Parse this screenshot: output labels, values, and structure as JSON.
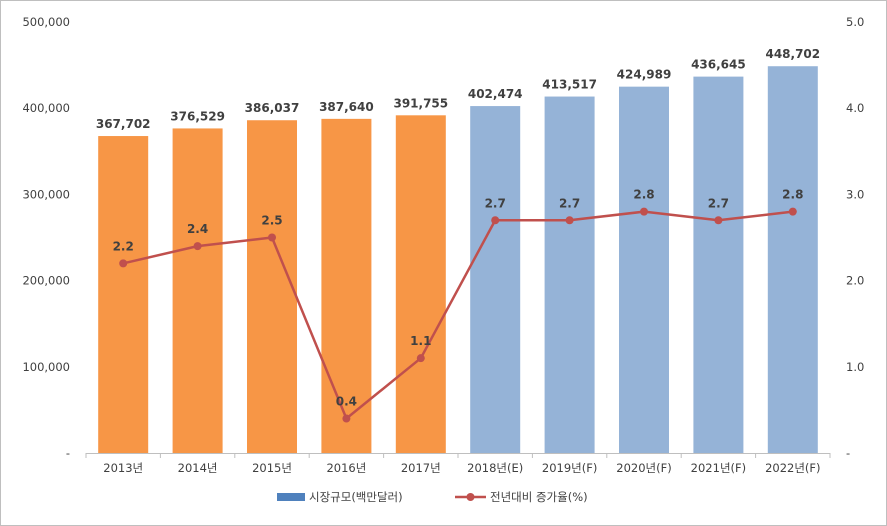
{
  "chart_data": {
    "type": "bar",
    "categories": [
      "2013년",
      "2014년",
      "2015년",
      "2016년",
      "2017년",
      "2018년(E)",
      "2019년(F)",
      "2020년(F)",
      "2021년(F)",
      "2022년(F)"
    ],
    "series": [
      {
        "name": "시장규모(백만달러)",
        "type": "bar",
        "axis": "left",
        "values": [
          367702,
          376529,
          386037,
          387640,
          391755,
          402474,
          413517,
          424989,
          436645,
          448702
        ],
        "labels": [
          "367,702",
          "376,529",
          "386,037",
          "387,640",
          "391,755",
          "402,474",
          "413,517",
          "424,989",
          "436,645",
          "448,702"
        ],
        "colors": [
          "#f79646",
          "#f79646",
          "#f79646",
          "#f79646",
          "#f79646",
          "#95b3d7",
          "#95b3d7",
          "#95b3d7",
          "#95b3d7",
          "#95b3d7"
        ]
      },
      {
        "name": "전년대비 증가율(%)",
        "type": "line",
        "axis": "right",
        "values": [
          2.2,
          2.4,
          2.5,
          0.4,
          1.1,
          2.7,
          2.7,
          2.8,
          2.7,
          2.8
        ],
        "labels": [
          "2.2",
          "2.4",
          "2.5",
          "0.4",
          "1.1",
          "2.7",
          "2.7",
          "2.8",
          "2.7",
          "2.8"
        ],
        "color": "#c0504d"
      }
    ],
    "y_left": {
      "lim": [
        0,
        500000
      ],
      "ticks": [
        0,
        100000,
        200000,
        300000,
        400000,
        500000
      ],
      "tick_labels": [
        "-",
        "100,000",
        "200,000",
        "300,000",
        "400,000",
        "500,000"
      ]
    },
    "y_right": {
      "lim": [
        0,
        5
      ],
      "ticks": [
        0,
        1,
        2,
        3,
        4,
        5
      ],
      "tick_labels": [
        "-",
        "1.0",
        "2.0",
        "3.0",
        "4.0",
        "5.0"
      ]
    },
    "legend": {
      "position": "bottom",
      "bar_label": "시장규모(백만달러)",
      "bar_color": "#4f81bd",
      "line_label": "전년대비 증가율(%)",
      "line_color": "#c0504d"
    },
    "grid": false
  }
}
